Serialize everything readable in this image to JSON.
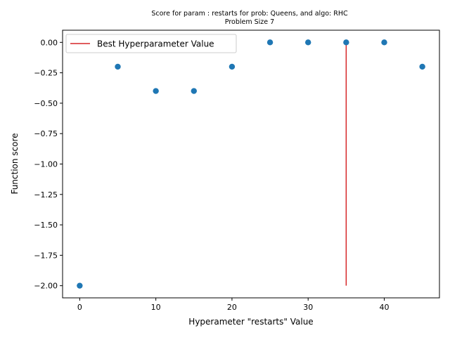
{
  "chart_data": {
    "type": "scatter",
    "title_line1": "Score for param : restarts for prob: Queens, and algo: RHC",
    "title_line2": "Problem Size 7",
    "xlabel": "Hyperameter \"restarts\" Value",
    "ylabel": "Function score",
    "xlim": [
      -2.25,
      47.25
    ],
    "ylim": [
      -2.1,
      0.1
    ],
    "xticks": [
      0,
      10,
      20,
      30,
      40
    ],
    "xtick_labels": [
      "0",
      "10",
      "20",
      "30",
      "40"
    ],
    "yticks": [
      0.0,
      -0.25,
      -0.5,
      -0.75,
      -1.0,
      -1.25,
      -1.5,
      -1.75,
      -2.0
    ],
    "ytick_labels": [
      "0.00",
      "−0.25",
      "−0.50",
      "−0.75",
      "−1.00",
      "−1.25",
      "−1.50",
      "−1.75",
      "−2.00"
    ],
    "points": {
      "x": [
        0,
        5,
        10,
        15,
        20,
        25,
        30,
        35,
        40,
        45
      ],
      "y": [
        -2.0,
        -0.2,
        -0.4,
        -0.4,
        -0.2,
        0.0,
        0.0,
        0.0,
        0.0,
        -0.2
      ],
      "color": "#1f77b4"
    },
    "best_line": {
      "name": "Best Hyperparameter Value",
      "x": 35,
      "y_from": -2.0,
      "y_to": 0.0,
      "color": "#d62728"
    },
    "legend_position": "upper-left",
    "grid": false
  }
}
